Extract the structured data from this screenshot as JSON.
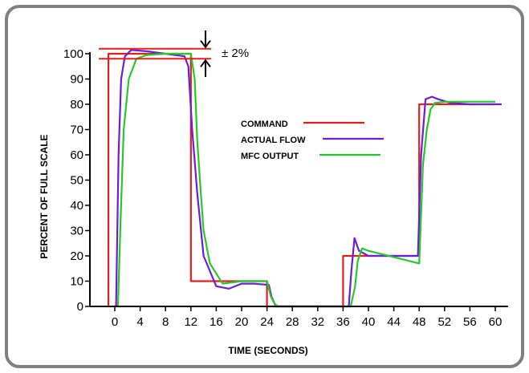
{
  "chart_data": {
    "type": "line",
    "xlabel": "TIME (SECONDS)",
    "ylabel": "PERCENT OF FULL SCALE",
    "xlim": [
      -3,
      62
    ],
    "ylim": [
      0,
      100
    ],
    "x_ticks": [
      0,
      4,
      8,
      12,
      16,
      20,
      24,
      28,
      32,
      36,
      40,
      44,
      48,
      52,
      56,
      60
    ],
    "y_ticks": [
      0,
      10,
      20,
      30,
      40,
      50,
      60,
      70,
      80,
      90,
      100
    ],
    "grid": false,
    "legend_position": "center",
    "tolerance_label": "± 2%",
    "tolerance_band": [
      98,
      102
    ],
    "series": [
      {
        "name": "COMMAND",
        "color": "#e0201c",
        "x": [
          -1,
          -1,
          12,
          12,
          24,
          24,
          36,
          36,
          48,
          48,
          60
        ],
        "y": [
          0,
          100,
          100,
          10,
          10,
          0,
          0,
          20,
          20,
          80,
          80
        ]
      },
      {
        "name": "ACTUAL FLOW",
        "color": "#6a1fd6",
        "x": [
          0.2,
          0.6,
          1.0,
          1.6,
          2.6,
          5,
          8,
          11,
          11.6,
          12.2,
          13,
          14,
          16,
          18,
          20,
          22,
          24.3,
          24.7,
          25.4,
          36.9,
          37.3,
          37.8,
          38.5,
          40,
          44,
          47.8,
          48.3,
          49,
          50,
          51,
          53,
          56,
          59,
          61
        ],
        "y": [
          0,
          60,
          90,
          99,
          101.5,
          101,
          100,
          99,
          95,
          70,
          45,
          20,
          8,
          7,
          9,
          9,
          8.5,
          4,
          0,
          0,
          14,
          27,
          22,
          20,
          20,
          20,
          60,
          82,
          83,
          82,
          80.5,
          80,
          80,
          80
        ]
      },
      {
        "name": "MFC OUTPUT",
        "color": "#26c929",
        "x": [
          0.5,
          0.9,
          1.4,
          2.2,
          3.4,
          5,
          8,
          11,
          12,
          12.6,
          13,
          13.5,
          14,
          15,
          17,
          20,
          24,
          24.6,
          25.2,
          25.8,
          37.2,
          37.9,
          38.3,
          39,
          40,
          48,
          48.6,
          49.2,
          49.8,
          50.5,
          52,
          60
        ],
        "y": [
          0,
          33,
          70,
          90,
          98,
          99.5,
          100,
          100,
          100,
          90,
          66,
          47,
          30,
          17,
          9,
          10,
          10,
          4,
          1,
          0,
          0,
          8,
          18,
          23,
          22,
          17,
          56,
          70,
          78,
          80.5,
          81,
          81
        ]
      }
    ]
  }
}
